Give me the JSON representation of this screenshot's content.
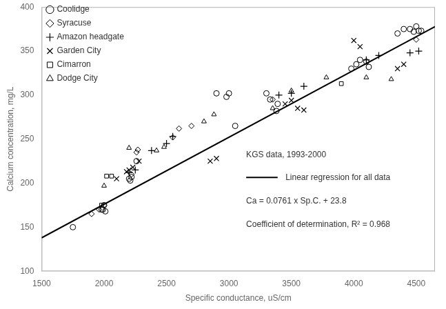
{
  "chart_data": {
    "type": "scatter",
    "xlabel": "Specific conductance, uS/cm",
    "ylabel": "Calcium concentration, mg/L",
    "xlim": [
      1500,
      4650
    ],
    "ylim": [
      100,
      400
    ],
    "xticks": [
      1500,
      2000,
      2500,
      3000,
      3500,
      4000,
      4500
    ],
    "yticks": [
      100,
      150,
      200,
      250,
      300,
      350,
      400
    ],
    "grid": false,
    "legend": "upper left",
    "series": [
      {
        "name": "Coolidge",
        "type": "scatter",
        "marker": "circle",
        "color": "#000000",
        "x": [
          1750,
          1980,
          1990,
          2000,
          2010,
          2200,
          2210,
          2220,
          2260,
          2900,
          2980,
          3000,
          3050,
          3300,
          3330,
          3380,
          3390,
          3980,
          4020,
          4050,
          4100,
          4120,
          4350,
          4400,
          4450,
          4480,
          4500,
          4520,
          4540
        ],
        "values": [
          150,
          170,
          170,
          175,
          168,
          205,
          203,
          207,
          225,
          302,
          298,
          302,
          265,
          302,
          295,
          282,
          290,
          330,
          335,
          340,
          338,
          332,
          370,
          375,
          375,
          372,
          378,
          373,
          373
        ]
      },
      {
        "name": "Syracuse",
        "type": "scatter",
        "marker": "diamond",
        "color": "#000000",
        "x": [
          1900,
          1960,
          2000,
          2220,
          2260,
          2270,
          2550,
          2600,
          2700,
          3350,
          4500
        ],
        "values": [
          165,
          170,
          175,
          210,
          235,
          238,
          252,
          262,
          265,
          295,
          363
        ]
      },
      {
        "name": "Amazon headgate",
        "type": "scatter",
        "marker": "plus",
        "color": "#000000",
        "x": [
          2200,
          2250,
          2380,
          2500,
          2550,
          3400,
          3500,
          3600,
          4100,
          4200,
          4450,
          4520
        ],
        "values": [
          212,
          215,
          237,
          245,
          253,
          300,
          302,
          310,
          340,
          345,
          348,
          350
        ]
      },
      {
        "name": "Garden City",
        "type": "scatter",
        "marker": "x",
        "color": "#000000",
        "x": [
          2100,
          2180,
          2200,
          2230,
          2280,
          2850,
          2900,
          3450,
          3500,
          3550,
          3600,
          4000,
          4050,
          4350,
          4400
        ],
        "values": [
          205,
          213,
          215,
          218,
          225,
          225,
          228,
          290,
          294,
          285,
          283,
          362,
          355,
          330,
          335
        ]
      },
      {
        "name": "Cimarron",
        "type": "scatter",
        "marker": "square",
        "color": "#000000",
        "x": [
          1980,
          2020,
          2060,
          3900
        ],
        "values": [
          175,
          208,
          208,
          313
        ]
      },
      {
        "name": "Dodge City",
        "type": "scatter",
        "marker": "triangle",
        "color": "#000000",
        "x": [
          2000,
          2200,
          2420,
          2480,
          2800,
          2880,
          3350,
          3500,
          3780,
          4100,
          4300
        ],
        "values": [
          197,
          240,
          237,
          241,
          270,
          278,
          285,
          305,
          320,
          320,
          318
        ]
      },
      {
        "type": "line",
        "line_style": "solid",
        "color": "#000000",
        "x": [
          1500,
          4650
        ],
        "values": [
          137.95,
          377.665
        ]
      }
    ],
    "annotations": [
      {
        "text": "KGS data, 1993-2000"
      },
      {
        "text": "Linear regression for all data",
        "line_style": "solid"
      },
      {
        "text": "Ca = 0.0761 x Sp.C. + 23.8"
      },
      {
        "text": "Coefficient of determination, R² = 0.968"
      }
    ]
  }
}
